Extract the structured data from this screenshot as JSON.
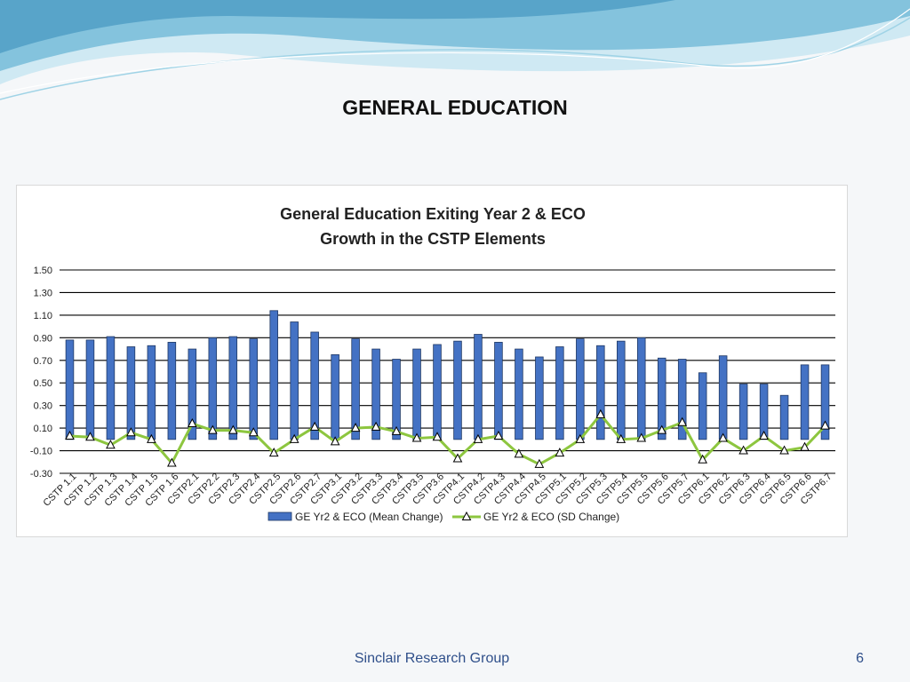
{
  "slide": {
    "title": "GENERAL EDUCATION",
    "footer": "Sinclair Research Group",
    "page_number": "6"
  },
  "colors": {
    "bar_fill": "#4472c4",
    "bar_stroke": "#1f3864",
    "line": "#8dc63f",
    "gridline": "#000000",
    "wave_dark": "#4fa7c9",
    "wave_light": "#bfe3f0"
  },
  "chart_data": {
    "type": "bar",
    "title_lines": [
      "General Education Exiting Year 2 & ECO",
      "Growth in the CSTP Elements"
    ],
    "ylim": [
      -0.3,
      1.5
    ],
    "yticks": [
      "1.50",
      "1.30",
      "1.10",
      "0.90",
      "0.70",
      "0.50",
      "0.30",
      "0.10",
      "-0.10",
      "-0.30"
    ],
    "grid": true,
    "legend_position": "bottom",
    "categories": [
      "CSTP 1.1",
      "CSTP 1.2",
      "CSTP 1.3",
      "CSTP 1.4",
      "CSTP 1.5",
      "CSTP 1.6",
      "CSTP2.1",
      "CSTP2.2",
      "CSTP2.3",
      "CSTP2.4",
      "CSTP2.5",
      "CSTP2.6",
      "CSTP2.7",
      "CSTP3.1",
      "CSTP3.2",
      "CSTP3.3",
      "CSTP3.4",
      "CSTP3.5",
      "CSTP3.6",
      "CSTP4.1",
      "CSTP4.2",
      "CSTP4.3",
      "CSTP4.4",
      "CSTP4.5",
      "CSTP5.1",
      "CSTP5.2",
      "CSTP5.3",
      "CSTP5.4",
      "CSTP5.5",
      "CSTP5.6",
      "CSTP5.7",
      "CSTP6.1",
      "CSTP6.2",
      "CSTP6.3",
      "CSTP6.4",
      "CSTP6.5",
      "CSTP6.6",
      "CSTP6.7"
    ],
    "series": [
      {
        "name": "GE Yr2 & ECO (Mean Change)",
        "type": "bar",
        "values": [
          0.88,
          0.88,
          0.91,
          0.82,
          0.83,
          0.86,
          0.8,
          0.9,
          0.91,
          0.89,
          1.14,
          1.04,
          0.95,
          0.75,
          0.89,
          0.8,
          0.71,
          0.8,
          0.84,
          0.87,
          0.93,
          0.86,
          0.8,
          0.73,
          0.82,
          0.89,
          0.83,
          0.87,
          0.9,
          0.72,
          0.71,
          0.59,
          0.74,
          0.49,
          0.49,
          0.39,
          0.66,
          0.66
        ]
      },
      {
        "name": "GE Yr2 & ECO (SD Change)",
        "type": "line",
        "values": [
          0.03,
          0.02,
          -0.05,
          0.06,
          0.0,
          -0.21,
          0.14,
          0.08,
          0.08,
          0.06,
          -0.12,
          0.0,
          0.11,
          -0.02,
          0.1,
          0.11,
          0.07,
          0.01,
          0.02,
          -0.17,
          0.0,
          0.03,
          -0.13,
          -0.22,
          -0.12,
          0.0,
          0.22,
          0.0,
          0.01,
          0.08,
          0.15,
          -0.18,
          0.01,
          -0.1,
          0.03,
          -0.1,
          -0.07,
          0.12
        ]
      }
    ]
  }
}
